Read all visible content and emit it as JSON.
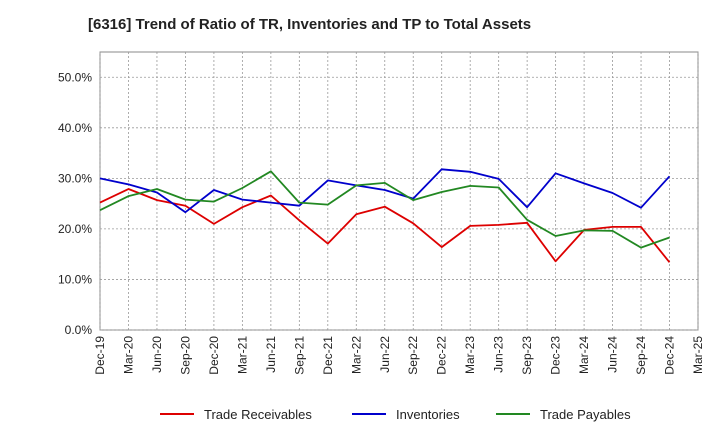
{
  "chart_data": {
    "type": "line",
    "title": "[6316]  Trend of Ratio of TR, Inventories and TP to Total Assets",
    "xlabel": "",
    "ylabel": "",
    "ylim": [
      0,
      55
    ],
    "y_ticks": [
      "0.0%",
      "10.0%",
      "20.0%",
      "30.0%",
      "40.0%",
      "50.0%"
    ],
    "y_tick_values": [
      0,
      10,
      20,
      30,
      40,
      50
    ],
    "x_tick_labels": [
      "Dec-19",
      "Mar-20",
      "Jun-20",
      "Sep-20",
      "Dec-20",
      "Mar-21",
      "Jun-21",
      "Sep-21",
      "Dec-21",
      "Mar-22",
      "Jun-22",
      "Sep-22",
      "Dec-22",
      "Mar-23",
      "Jun-23",
      "Sep-23",
      "Dec-23",
      "Mar-24",
      "Jun-24",
      "Sep-24",
      "Dec-24",
      "Mar-25"
    ],
    "grid": true,
    "legend_position": "bottom",
    "series": [
      {
        "name": "Trade Receivables",
        "color": "#dd0000",
        "values": [
          25.2,
          27.9,
          25.7,
          24.6,
          21.0,
          24.3,
          26.6,
          21.7,
          17.1,
          22.9,
          24.4,
          21.1,
          16.4,
          20.6,
          20.8,
          21.2,
          13.6,
          19.8,
          20.4,
          20.4,
          13.4
        ]
      },
      {
        "name": "Inventories",
        "color": "#0000cc",
        "values": [
          30.0,
          28.8,
          27.2,
          23.3,
          27.7,
          25.8,
          25.2,
          24.6,
          29.6,
          28.6,
          27.7,
          26.0,
          31.8,
          31.3,
          29.9,
          24.3,
          31.0,
          29.0,
          27.1,
          24.2,
          30.4
        ]
      },
      {
        "name": "Trade Payables",
        "color": "#228822",
        "values": [
          23.7,
          26.5,
          27.9,
          25.8,
          25.4,
          28.1,
          31.4,
          25.2,
          24.8,
          28.6,
          29.1,
          25.7,
          27.3,
          28.5,
          28.2,
          21.8,
          18.6,
          19.7,
          19.6,
          16.3,
          18.3
        ]
      }
    ]
  }
}
